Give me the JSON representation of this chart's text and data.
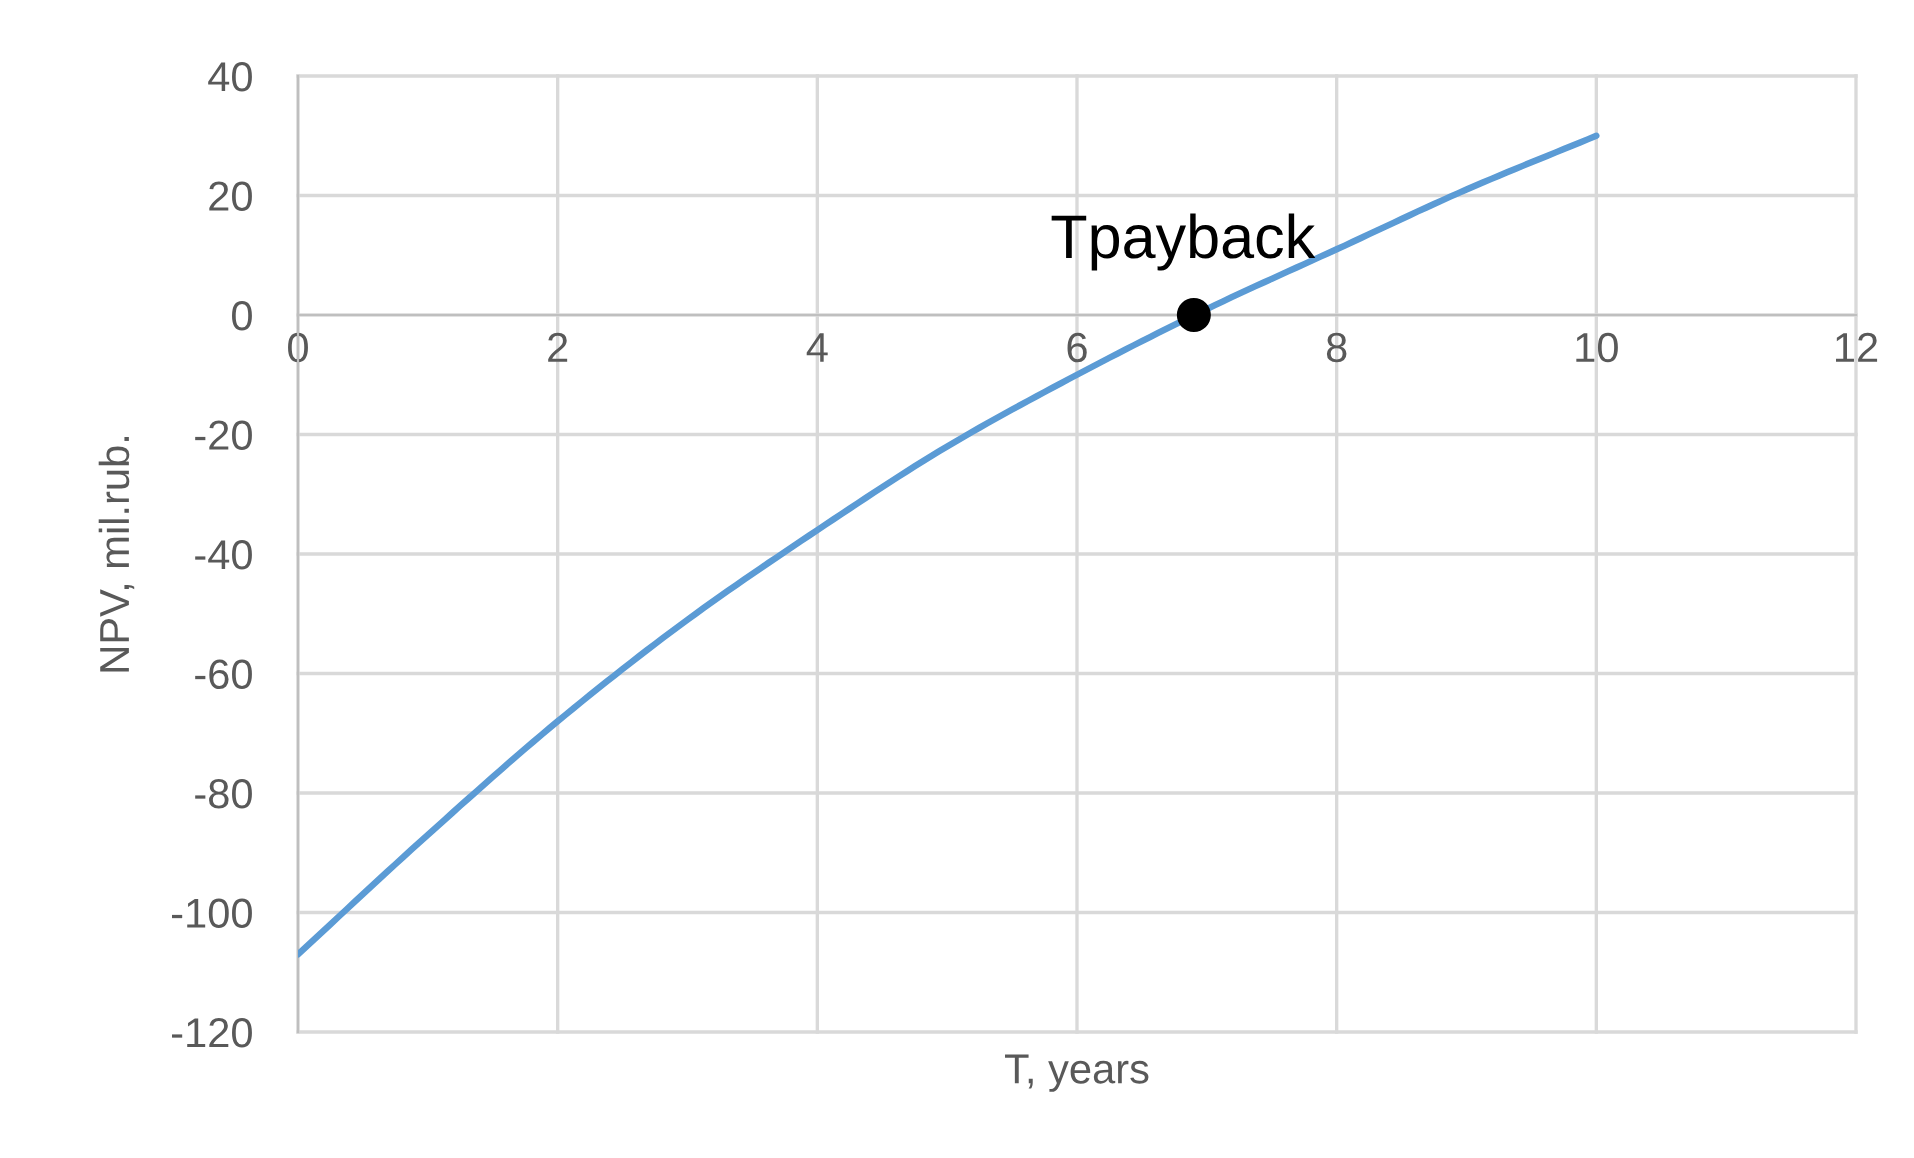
{
  "chart_data": {
    "type": "line",
    "xlabel": "T, years",
    "ylabel": "NPV, mil.rub.",
    "x": [
      0,
      1,
      2,
      3,
      4,
      5,
      6,
      7,
      8,
      9,
      10
    ],
    "series": [
      {
        "color": "#5b9bd5",
        "values": [
          -107,
          -87,
          -68,
          -51,
          -36,
          -22,
          -10,
          1,
          11,
          21,
          30
        ]
      },
      {
        "type": "scatter",
        "x": [
          6.9
        ],
        "values": [
          0
        ],
        "color": "#000000",
        "marker": "circle"
      }
    ],
    "annotations": [
      {
        "text": "Tpayback",
        "x": 6.9,
        "y": 0
      }
    ],
    "xlim": [
      0,
      12
    ],
    "ylim": [
      -120,
      40
    ],
    "xticks": [
      0,
      2,
      4,
      6,
      8,
      10,
      12
    ],
    "yticks": [
      -120,
      -100,
      -80,
      -60,
      -40,
      -20,
      0,
      20,
      40
    ],
    "grid": true,
    "marker": "none",
    "line_style": "solid"
  }
}
